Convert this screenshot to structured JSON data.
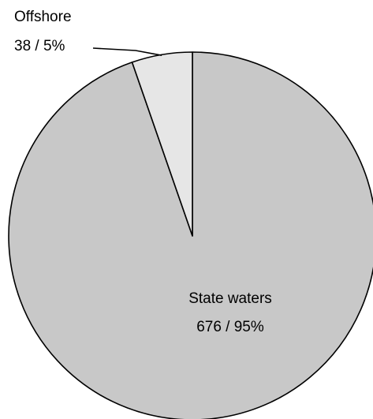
{
  "chart_data": {
    "type": "pie",
    "title": "",
    "slices": [
      {
        "label": "State waters",
        "value": 676,
        "percent_label": "676 / 95%",
        "color": "#c8c8c8"
      },
      {
        "label": "Offshore",
        "value": 38,
        "percent_label": "38 / 5%",
        "color": "#e6e6e6"
      }
    ],
    "start_angle_deg": 0,
    "direction": "clockwise",
    "outline_color": "#000000",
    "legend": "none",
    "label_placement": {
      "State waters": "inside",
      "Offshore": "outside-with-leader"
    }
  }
}
